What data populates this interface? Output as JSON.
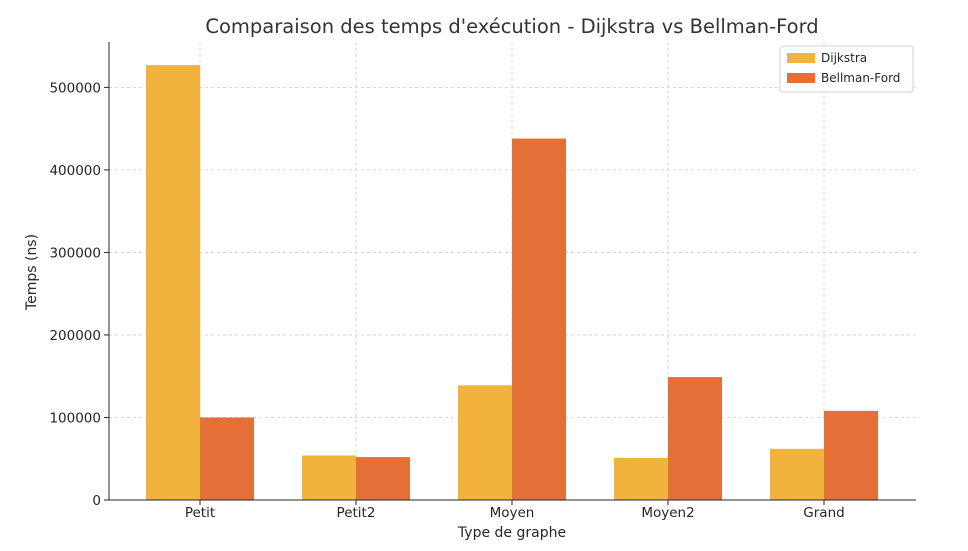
{
  "chart_data": {
    "type": "bar",
    "title": "Comparaison des temps d'exécution - Dijkstra vs Bellman-Ford",
    "xlabel": "Type de graphe",
    "ylabel": "Temps (ns)",
    "categories": [
      "Petit",
      "Petit2",
      "Moyen",
      "Moyen2",
      "Grand"
    ],
    "series": [
      {
        "name": "Dijkstra",
        "color": "#f2b23e",
        "values": [
          527000,
          54000,
          139000,
          51000,
          62000
        ]
      },
      {
        "name": "Bellman-Ford",
        "color": "#e46f37",
        "values": [
          100000,
          52000,
          438000,
          149000,
          108000
        ]
      }
    ],
    "ylim": [
      0,
      555000
    ],
    "yticks": [
      0,
      100000,
      200000,
      300000,
      400000,
      500000
    ],
    "ytick_labels": [
      "0",
      "100000",
      "200000",
      "300000",
      "400000",
      "500000"
    ],
    "grid": true,
    "legend_position": "top-right"
  }
}
